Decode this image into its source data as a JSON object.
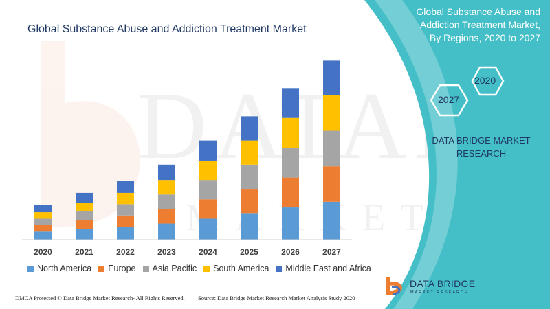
{
  "chart_title": "Global Substance Abuse and Addiction Treatment Market",
  "side_panel": {
    "heading_lines": [
      "Global Substance Abuse and",
      "Addiction Treatment Market,",
      "By Regions, 2020 to 2027"
    ],
    "hex_top_label": "2020",
    "hex_bottom_label": "2027",
    "brand_lines": [
      "DATA BRIDGE MARKET",
      "RESEARCH"
    ]
  },
  "footer": {
    "left": "DMCA Protected © Data Bridge Market Research- All Rights Reserved.",
    "right": "Source: Data Bridge Market Research Market Analysis Study 2020"
  },
  "logo": {
    "name": "DATA BRIDGE",
    "tagline": "MARKET RESEARCH"
  },
  "watermark": "DATA BRIDGE MARKET RESEARCH",
  "colors": {
    "title": "#1f3864",
    "panel": "#45bfc7",
    "brand": "#1f3864",
    "logo_orange": "#ed7d31",
    "logo_blue": "#4472c4"
  },
  "chart_data": {
    "type": "bar",
    "stacked": true,
    "categories": [
      "2020",
      "2021",
      "2022",
      "2023",
      "2024",
      "2025",
      "2026",
      "2027"
    ],
    "series": [
      {
        "name": "North America",
        "color": "#5b9bd5",
        "values": [
          10,
          13,
          16,
          20,
          26,
          33,
          40,
          47
        ]
      },
      {
        "name": "Europe",
        "color": "#ed7d31",
        "values": [
          8,
          11,
          14,
          18,
          24,
          30,
          37,
          44
        ]
      },
      {
        "name": "Asia Pacific",
        "color": "#a5a5a5",
        "values": [
          8,
          11,
          14,
          18,
          24,
          30,
          37,
          44
        ]
      },
      {
        "name": "South America",
        "color": "#ffc000",
        "values": [
          8,
          11,
          14,
          18,
          24,
          30,
          37,
          44
        ]
      },
      {
        "name": "Middle East and Africa",
        "color": "#4472c4",
        "values": [
          9,
          12,
          15,
          19,
          25,
          30,
          37,
          43
        ]
      }
    ],
    "xlabel": "",
    "ylabel": "",
    "ylim": [
      0,
      230
    ],
    "grid": false,
    "legend": "bottom"
  }
}
